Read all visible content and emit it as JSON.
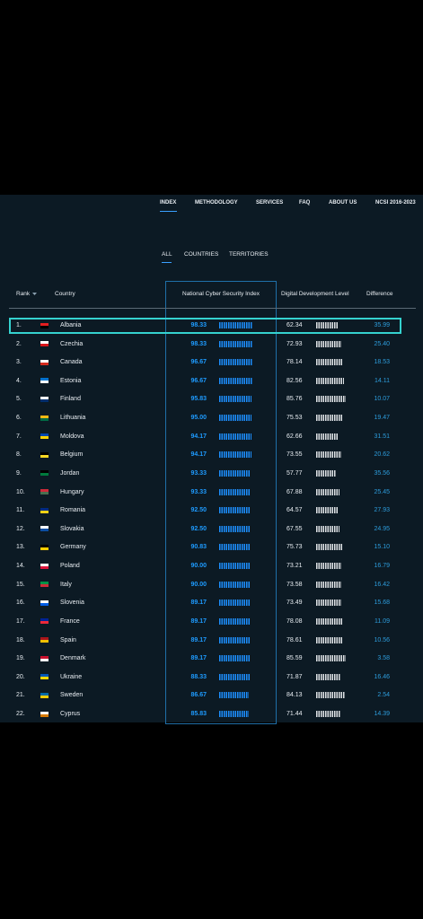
{
  "nav": {
    "items": [
      "INDEX",
      "METHODOLOGY",
      "SERVICES",
      "FAQ",
      "ABOUT US",
      "NCSI 2016-2023"
    ]
  },
  "tabs": [
    "ALL",
    "COUNTRIES",
    "TERRITORIES"
  ],
  "table": {
    "headers": {
      "rank": "Rank",
      "country": "Country",
      "ncsi": "National Cyber Security Index",
      "ddl": "Digital Development Level",
      "difference": "Difference"
    },
    "rows": [
      {
        "rank": "1.",
        "country": "Albania",
        "ncsi": "98.33",
        "ddl": "62.34",
        "difference": "35.99"
      },
      {
        "rank": "2.",
        "country": "Czechia",
        "ncsi": "98.33",
        "ddl": "72.93",
        "difference": "25.40"
      },
      {
        "rank": "3.",
        "country": "Canada",
        "ncsi": "96.67",
        "ddl": "78.14",
        "difference": "18.53"
      },
      {
        "rank": "4.",
        "country": "Estonia",
        "ncsi": "96.67",
        "ddl": "82.56",
        "difference": "14.11"
      },
      {
        "rank": "5.",
        "country": "Finland",
        "ncsi": "95.83",
        "ddl": "85.76",
        "difference": "10.07"
      },
      {
        "rank": "6.",
        "country": "Lithuania",
        "ncsi": "95.00",
        "ddl": "75.53",
        "difference": "19.47"
      },
      {
        "rank": "7.",
        "country": "Moldova",
        "ncsi": "94.17",
        "ddl": "62.66",
        "difference": "31.51"
      },
      {
        "rank": "8.",
        "country": "Belgium",
        "ncsi": "94.17",
        "ddl": "73.55",
        "difference": "20.62"
      },
      {
        "rank": "9.",
        "country": "Jordan",
        "ncsi": "93.33",
        "ddl": "57.77",
        "difference": "35.56"
      },
      {
        "rank": "10.",
        "country": "Hungary",
        "ncsi": "93.33",
        "ddl": "67.88",
        "difference": "25.45"
      },
      {
        "rank": "11.",
        "country": "Romania",
        "ncsi": "92.50",
        "ddl": "64.57",
        "difference": "27.93"
      },
      {
        "rank": "12.",
        "country": "Slovakia",
        "ncsi": "92.50",
        "ddl": "67.55",
        "difference": "24.95"
      },
      {
        "rank": "13.",
        "country": "Germany",
        "ncsi": "90.83",
        "ddl": "75.73",
        "difference": "15.10"
      },
      {
        "rank": "14.",
        "country": "Poland",
        "ncsi": "90.00",
        "ddl": "73.21",
        "difference": "16.79"
      },
      {
        "rank": "15.",
        "country": "Italy",
        "ncsi": "90.00",
        "ddl": "73.58",
        "difference": "16.42"
      },
      {
        "rank": "16.",
        "country": "Slovenia",
        "ncsi": "89.17",
        "ddl": "73.49",
        "difference": "15.68"
      },
      {
        "rank": "17.",
        "country": "France",
        "ncsi": "89.17",
        "ddl": "78.08",
        "difference": "11.09"
      },
      {
        "rank": "18.",
        "country": "Spain",
        "ncsi": "89.17",
        "ddl": "78.61",
        "difference": "10.56"
      },
      {
        "rank": "19.",
        "country": "Denmark",
        "ncsi": "89.17",
        "ddl": "85.59",
        "difference": "3.58"
      },
      {
        "rank": "20.",
        "country": "Ukraine",
        "ncsi": "88.33",
        "ddl": "71.87",
        "difference": "16.46"
      },
      {
        "rank": "21.",
        "country": "Sweden",
        "ncsi": "86.67",
        "ddl": "84.13",
        "difference": "2.54"
      },
      {
        "rank": "22.",
        "country": "Cyprus",
        "ncsi": "85.83",
        "ddl": "71.44",
        "difference": "14.39"
      }
    ]
  }
}
